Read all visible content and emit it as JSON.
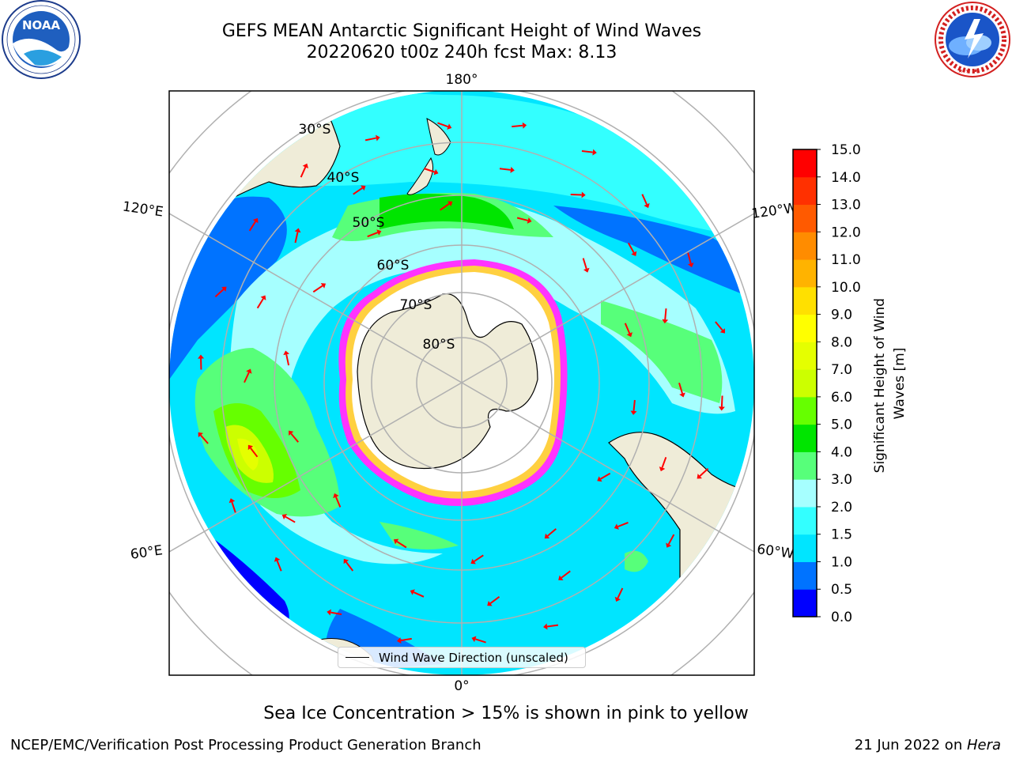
{
  "title": {
    "line1": "GEFS MEAN Antarctic Significant Height of Wind Waves",
    "line2": "20220620 t00z 240h fcst   Max: 8.13"
  },
  "logos": {
    "left": {
      "icon": "noaa-logo",
      "text": "NOAA",
      "ring_text": "NATIONAL OCEANIC AND ATMOSPHERIC ADMINISTRATION · U.S. DEPARTMENT OF COMMERCE"
    },
    "right": {
      "icon": "nws-logo",
      "ring_text": "NATIONAL WEATHER SERVICE"
    }
  },
  "map": {
    "projection": "south-polar-stereographic",
    "longitude_labels": {
      "top": "180°",
      "bottom": "0°",
      "left_upper": "120°E",
      "left_lower": "60°E",
      "right_upper": "120°W",
      "right_lower": "60°W"
    },
    "latitude_labels": [
      "30°S",
      "40°S",
      "50°S",
      "60°S",
      "70°S",
      "80°S"
    ],
    "colors": {
      "land": "#efecd8",
      "sea_ice": "#ffffff",
      "arrow": "#ff0000",
      "grid": "#b0b0b0"
    },
    "legend": {
      "label": "Wind Wave Direction (unscaled)"
    }
  },
  "colorbar": {
    "label": "Significant Height of Wind Waves [m]",
    "ticks": [
      "0.0",
      "0.5",
      "1.0",
      "1.5",
      "2.0",
      "3.0",
      "4.0",
      "5.0",
      "6.0",
      "7.0",
      "8.0",
      "9.0",
      "10.0",
      "11.0",
      "12.0",
      "13.0",
      "14.0",
      "15.0"
    ],
    "colors": [
      "#0000ff",
      "#0073ff",
      "#00e5ff",
      "#33ffff",
      "#a6ffff",
      "#57ff7a",
      "#00e500",
      "#66ff00",
      "#ccff00",
      "#e5ff00",
      "#ffff00",
      "#ffe000",
      "#ffb300",
      "#ff8c00",
      "#ff5a00",
      "#ff3000",
      "#ff0000"
    ]
  },
  "note": "Sea Ice Concentration > 15% is shown in pink to yellow",
  "footer": {
    "left": "NCEP/EMC/Verification Post Processing Product Generation Branch",
    "right_prefix": "21 Jun 2022 on ",
    "right_machine": "Hera"
  }
}
